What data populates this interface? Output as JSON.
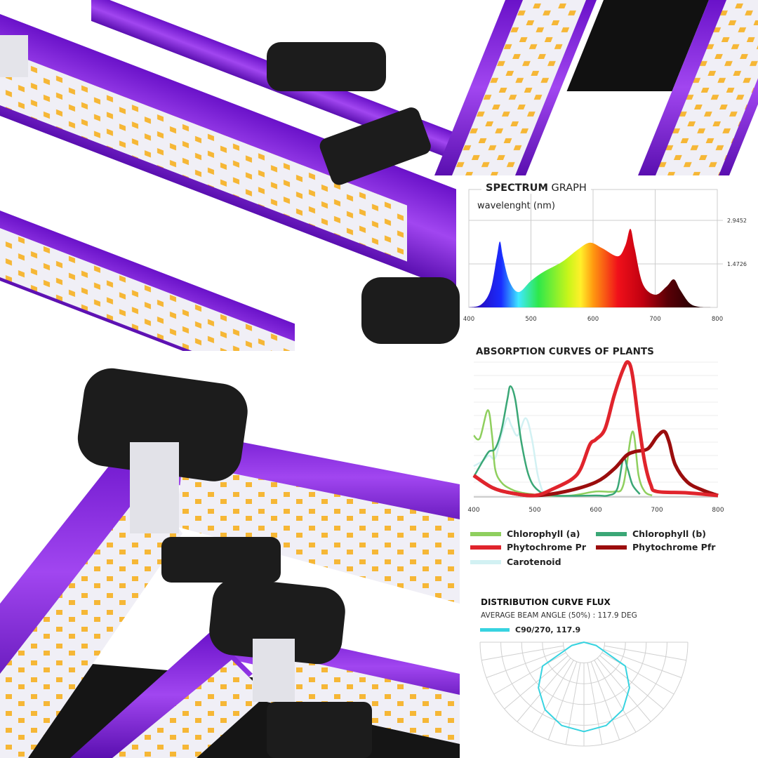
{
  "colors": {
    "housing_purple": "#8a2be2",
    "led_strip": "#f1f1f7",
    "led_chip": "#f5b632",
    "corner_black": "#1c1c1c"
  },
  "chart_data": [
    {
      "type": "area",
      "title_bold": "SPECTRUM",
      "title_rest": "GRAPH",
      "xlabel": "wavelenght (nm)",
      "xlim": [
        400,
        800
      ],
      "x_ticks": [
        "400",
        "500",
        "600",
        "700",
        "800"
      ],
      "y_ticks": [
        "2.9452",
        "1.4726"
      ],
      "y_tick_values": [
        2.9452,
        1.4726
      ],
      "grid": true,
      "fill": "visible-spectrum gradient",
      "x": [
        400,
        420,
        435,
        445,
        450,
        455,
        465,
        480,
        500,
        520,
        550,
        575,
        595,
        615,
        640,
        652,
        660,
        667,
        680,
        700,
        718,
        730,
        740,
        755,
        770,
        790
      ],
      "y": [
        0.0,
        0.1,
        0.6,
        1.7,
        2.23,
        1.7,
        0.9,
        0.52,
        0.9,
        1.2,
        1.54,
        1.95,
        2.19,
        2.0,
        1.73,
        2.1,
        2.66,
        2.0,
        0.8,
        0.43,
        0.7,
        0.95,
        0.6,
        0.15,
        0.02,
        0.0
      ]
    },
    {
      "type": "line",
      "title": "ABSORPTION CURVES OF PLANTS",
      "xlim": [
        400,
        800
      ],
      "ylim": [
        0,
        100
      ],
      "x_ticks": [
        "400",
        "500",
        "600",
        "700",
        "800"
      ],
      "grid": true,
      "legend_position": "bottom",
      "series": [
        {
          "name": "Chlorophyll (a)",
          "color": "#8fcf5e",
          "x": [
            400,
            410,
            423,
            430,
            435,
            445,
            460,
            480,
            520,
            560,
            600,
            630,
            645,
            660,
            670,
            680,
            692
          ],
          "y": [
            45,
            43,
            64,
            45,
            20,
            10,
            5,
            2,
            0,
            0,
            3,
            3,
            8,
            48,
            15,
            3,
            0
          ]
        },
        {
          "name": "Chlorophyll (b)",
          "color": "#3aa776",
          "x": [
            400,
            415,
            425,
            435,
            445,
            455,
            460,
            468,
            478,
            490,
            505,
            530,
            600,
            620,
            635,
            645,
            652,
            660,
            672
          ],
          "y": [
            14,
            26,
            33,
            35,
            48,
            72,
            82,
            72,
            40,
            15,
            4,
            0,
            0,
            0,
            5,
            28,
            20,
            8,
            1
          ]
        },
        {
          "name": "Phytochrome Pr",
          "color": "#e0242c",
          "x": [
            400,
            430,
            460,
            500,
            530,
            560,
            575,
            590,
            600,
            615,
            630,
            645,
            653,
            660,
            670,
            680,
            690,
            700,
            750,
            800
          ],
          "y": [
            15,
            6,
            2,
            0,
            5,
            12,
            20,
            38,
            42,
            50,
            75,
            95,
            100,
            90,
            55,
            25,
            8,
            3,
            2,
            0
          ]
        },
        {
          "name": "Phytochrome Pfr",
          "color": "#9b0d0d",
          "x": [
            400,
            430,
            460,
            500,
            550,
            600,
            630,
            650,
            665,
            685,
            700,
            712,
            720,
            730,
            750,
            775,
            800
          ],
          "y": [
            15,
            6,
            2,
            0,
            3,
            10,
            20,
            30,
            33,
            35,
            44,
            48,
            40,
            23,
            10,
            4,
            0
          ]
        },
        {
          "name": "Carotenoid",
          "color": "#d2f1f3",
          "x": [
            400,
            415,
            425,
            435,
            445,
            455,
            462,
            472,
            485,
            495,
            505,
            515
          ],
          "y": [
            22,
            26,
            30,
            28,
            45,
            58,
            52,
            45,
            58,
            43,
            15,
            0
          ]
        }
      ]
    },
    {
      "type": "polar",
      "title": "DISTRIBUTION CURVE FLUX",
      "subtitle": "AVERAGE BEAM ANGLE  (50%) : 117.9 DEG",
      "series": [
        {
          "name": "C90/270, 117.9",
          "color": "#37d3e0",
          "angles_deg": [
            -90,
            -75,
            -60,
            -45,
            -30,
            -15,
            0,
            15,
            30,
            45,
            60,
            75,
            90
          ],
          "relative_intensity": [
            0,
            0.12,
            0.46,
            0.62,
            0.75,
            0.83,
            0.86,
            0.83,
            0.75,
            0.62,
            0.46,
            0.12,
            0
          ]
        }
      ]
    }
  ]
}
